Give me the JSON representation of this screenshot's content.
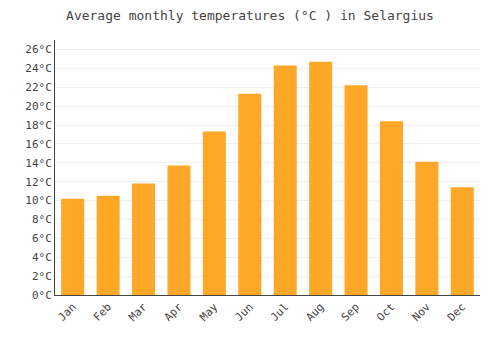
{
  "chart_data": {
    "type": "bar",
    "title": "Average monthly temperatures (°C ) in Selargius",
    "categories": [
      "Jan",
      "Feb",
      "Mar",
      "Apr",
      "May",
      "Jun",
      "Jul",
      "Aug",
      "Sep",
      "Oct",
      "Nov",
      "Dec"
    ],
    "values": [
      10.2,
      10.5,
      11.8,
      13.7,
      17.3,
      21.3,
      24.3,
      24.7,
      22.2,
      18.4,
      14.1,
      11.4
    ],
    "color": "#FFA726",
    "ylim": [
      0,
      27
    ],
    "yticks": [
      {
        "value": 0,
        "label": "0°C"
      },
      {
        "value": 2,
        "label": "2°C"
      },
      {
        "value": 4,
        "label": "4°C"
      },
      {
        "value": 6,
        "label": "6°C"
      },
      {
        "value": 8,
        "label": "8°C"
      },
      {
        "value": 10,
        "label": "10°C"
      },
      {
        "value": 12,
        "label": "12°C"
      },
      {
        "value": 14,
        "label": "14°C"
      },
      {
        "value": 16,
        "label": "16°C"
      },
      {
        "value": 18,
        "label": "18°C"
      },
      {
        "value": 20,
        "label": "20°C"
      },
      {
        "value": 22,
        "label": "22°C"
      },
      {
        "value": 24,
        "label": "24°C"
      },
      {
        "value": 26,
        "label": "26°C"
      }
    ],
    "grid": true
  }
}
